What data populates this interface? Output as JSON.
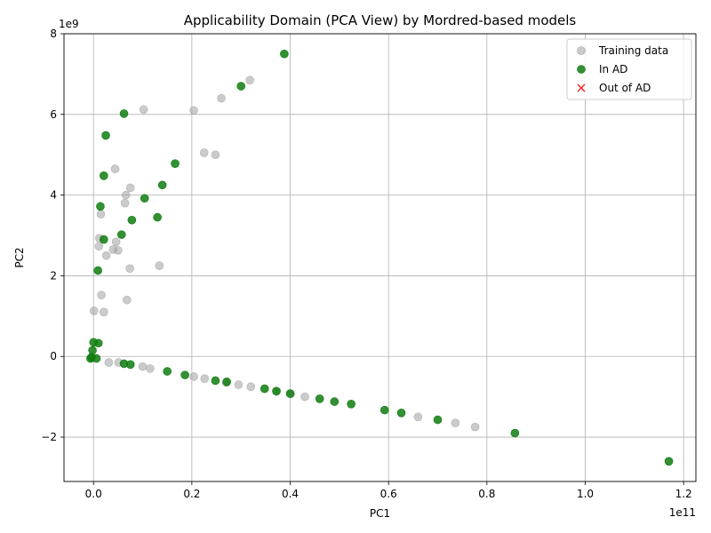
{
  "chart_data": {
    "type": "scatter",
    "title": "Applicability Domain (PCA View) by Mordred-based models",
    "xlabel": "PC1",
    "ylabel": "PC2",
    "x_offset_label": "1e11",
    "y_offset_label": "1e9",
    "xlim": [
      -0.06,
      1.225
    ],
    "ylim": [
      -3.1,
      8.0
    ],
    "x_ticks": [
      {
        "value": 0.0,
        "label": "0.0"
      },
      {
        "value": 0.2,
        "label": "0.2"
      },
      {
        "value": 0.4,
        "label": "0.4"
      },
      {
        "value": 0.6,
        "label": "0.6"
      },
      {
        "value": 0.8,
        "label": "0.8"
      },
      {
        "value": 1.0,
        "label": "1.0"
      },
      {
        "value": 1.2,
        "label": "1.2"
      }
    ],
    "y_ticks": [
      {
        "value": -2,
        "label": "−2"
      },
      {
        "value": 0,
        "label": "0"
      },
      {
        "value": 2,
        "label": "2"
      },
      {
        "value": 4,
        "label": "4"
      },
      {
        "value": 6,
        "label": "6"
      },
      {
        "value": 8,
        "label": "8"
      }
    ],
    "grid": true,
    "legend_position": "top-right",
    "series": [
      {
        "name": "Training data",
        "marker": "circle",
        "color": "#a0a0a0",
        "points": [
          [
            0.318,
            6.85
          ],
          [
            0.26,
            6.4
          ],
          [
            0.102,
            6.12
          ],
          [
            0.204,
            6.1
          ],
          [
            0.225,
            5.05
          ],
          [
            0.248,
            5.0
          ],
          [
            0.044,
            4.65
          ],
          [
            0.075,
            4.18
          ],
          [
            0.066,
            4.0
          ],
          [
            0.064,
            3.8
          ],
          [
            0.015,
            3.53
          ],
          [
            0.012,
            2.93
          ],
          [
            0.046,
            2.84
          ],
          [
            0.011,
            2.73
          ],
          [
            0.04,
            2.65
          ],
          [
            0.05,
            2.63
          ],
          [
            0.026,
            2.5
          ],
          [
            0.134,
            2.25
          ],
          [
            0.074,
            2.18
          ],
          [
            0.016,
            1.52
          ],
          [
            0.068,
            1.4
          ],
          [
            0.001,
            1.13
          ],
          [
            0.021,
            1.1
          ],
          [
            0.031,
            -0.15
          ],
          [
            0.051,
            -0.15
          ],
          [
            0.1,
            -0.25
          ],
          [
            0.115,
            -0.3
          ],
          [
            0.204,
            -0.5
          ],
          [
            0.226,
            -0.55
          ],
          [
            0.27,
            -0.65
          ],
          [
            0.295,
            -0.7
          ],
          [
            0.32,
            -0.75
          ],
          [
            0.372,
            -0.87
          ],
          [
            0.401,
            -0.93
          ],
          [
            0.43,
            -1.0
          ],
          [
            0.66,
            -1.5
          ],
          [
            0.736,
            -1.65
          ],
          [
            0.776,
            -1.75
          ]
        ]
      },
      {
        "name": "In AD",
        "marker": "circle",
        "color": "#0f7d0f",
        "points": [
          [
            0.388,
            7.5
          ],
          [
            0.3,
            6.7
          ],
          [
            0.062,
            6.02
          ],
          [
            0.025,
            5.48
          ],
          [
            0.166,
            4.78
          ],
          [
            0.021,
            4.48
          ],
          [
            0.14,
            4.25
          ],
          [
            0.104,
            3.92
          ],
          [
            0.014,
            3.72
          ],
          [
            0.078,
            3.38
          ],
          [
            0.13,
            3.45
          ],
          [
            0.057,
            3.02
          ],
          [
            0.021,
            2.9
          ],
          [
            0.009,
            2.13
          ],
          [
            0.0,
            0.35
          ],
          [
            0.01,
            0.33
          ],
          [
            -0.002,
            0.15
          ],
          [
            -0.006,
            -0.05
          ],
          [
            -0.004,
            -0.02
          ],
          [
            0.006,
            -0.05
          ],
          [
            0.062,
            -0.18
          ],
          [
            0.075,
            -0.2
          ],
          [
            0.15,
            -0.37
          ],
          [
            0.186,
            -0.46
          ],
          [
            0.248,
            -0.6
          ],
          [
            0.271,
            -0.63
          ],
          [
            0.348,
            -0.8
          ],
          [
            0.372,
            -0.86
          ],
          [
            0.4,
            -0.92
          ],
          [
            0.46,
            -1.05
          ],
          [
            0.49,
            -1.12
          ],
          [
            0.524,
            -1.18
          ],
          [
            0.592,
            -1.33
          ],
          [
            0.626,
            -1.4
          ],
          [
            0.7,
            -1.57
          ],
          [
            0.857,
            -1.9
          ],
          [
            1.17,
            -2.6
          ]
        ]
      },
      {
        "name": "Out of AD",
        "marker": "x",
        "color": "#e8272a",
        "points": []
      }
    ]
  }
}
